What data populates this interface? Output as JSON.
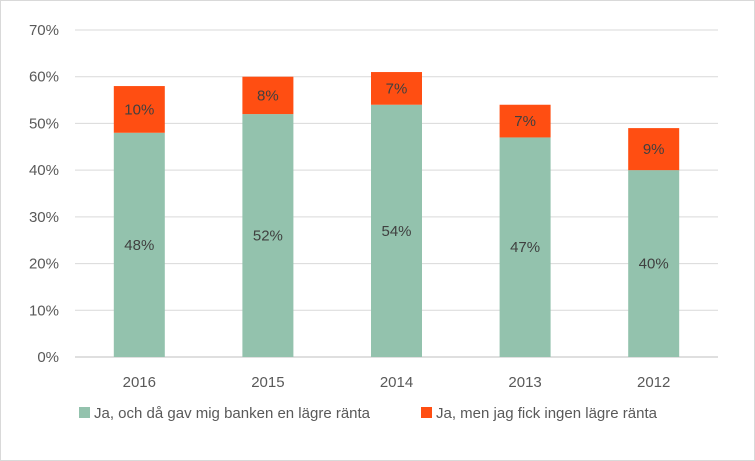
{
  "chart_data": {
    "type": "bar",
    "stacked": true,
    "categories": [
      "2016",
      "2015",
      "2014",
      "2013",
      "2012"
    ],
    "series": [
      {
        "name": "Ja, och då gav mig banken en lägre ränta",
        "values": [
          48,
          52,
          54,
          47,
          40
        ],
        "labels": [
          "48%",
          "52%",
          "54%",
          "47%",
          "40%"
        ],
        "color": "#93c2ad"
      },
      {
        "name": "Ja, men jag fick ingen lägre ränta",
        "values": [
          10,
          8,
          7,
          7,
          9
        ],
        "labels": [
          "10%",
          "8%",
          "7%",
          "7%",
          "9%"
        ],
        "color": "#ff4e12"
      }
    ],
    "ylim": [
      0,
      70
    ],
    "yticks": [
      0,
      10,
      20,
      30,
      40,
      50,
      60,
      70
    ],
    "ytick_labels": [
      "0%",
      "10%",
      "20%",
      "30%",
      "40%",
      "50%",
      "60%",
      "70%"
    ],
    "grid": true,
    "legend_position": "bottom",
    "title": "",
    "xlabel": "",
    "ylabel": ""
  }
}
